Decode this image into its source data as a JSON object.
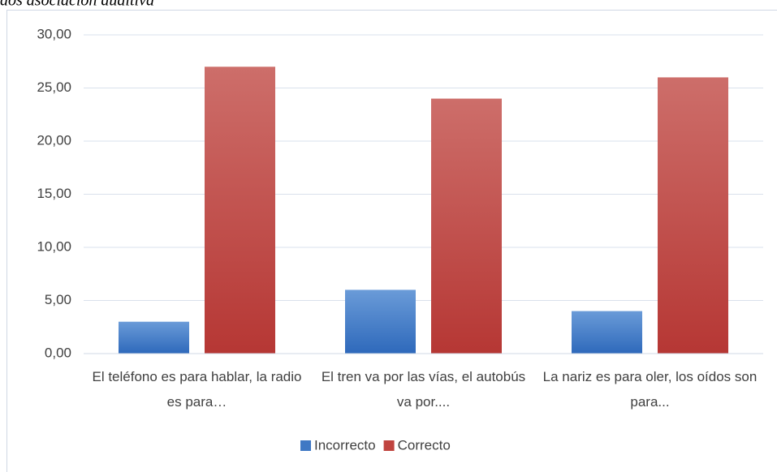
{
  "chart_data": {
    "type": "bar",
    "title": "dos asociación auditiva",
    "categories": [
      "El teléfono es para hablar, la radio es para…",
      "El tren va por las vías, el autobús va por....",
      "La nariz es para oler, los oídos son para..."
    ],
    "series": [
      {
        "name": "Incorrecto",
        "color": "#3f78c4",
        "values": [
          3,
          6,
          4
        ]
      },
      {
        "name": "Correcto",
        "color": "#c0443f",
        "values": [
          27,
          24,
          26
        ]
      }
    ],
    "ylim": [
      0,
      30
    ],
    "yticks": [
      {
        "value": 0,
        "label": "0,00"
      },
      {
        "value": 5,
        "label": "5,00"
      },
      {
        "value": 10,
        "label": "10,00"
      },
      {
        "value": 15,
        "label": "15,00"
      },
      {
        "value": 20,
        "label": "20,00"
      },
      {
        "value": 25,
        "label": "25,00"
      },
      {
        "value": 30,
        "label": "30,00"
      }
    ],
    "grid": true,
    "legend": "bottom"
  }
}
